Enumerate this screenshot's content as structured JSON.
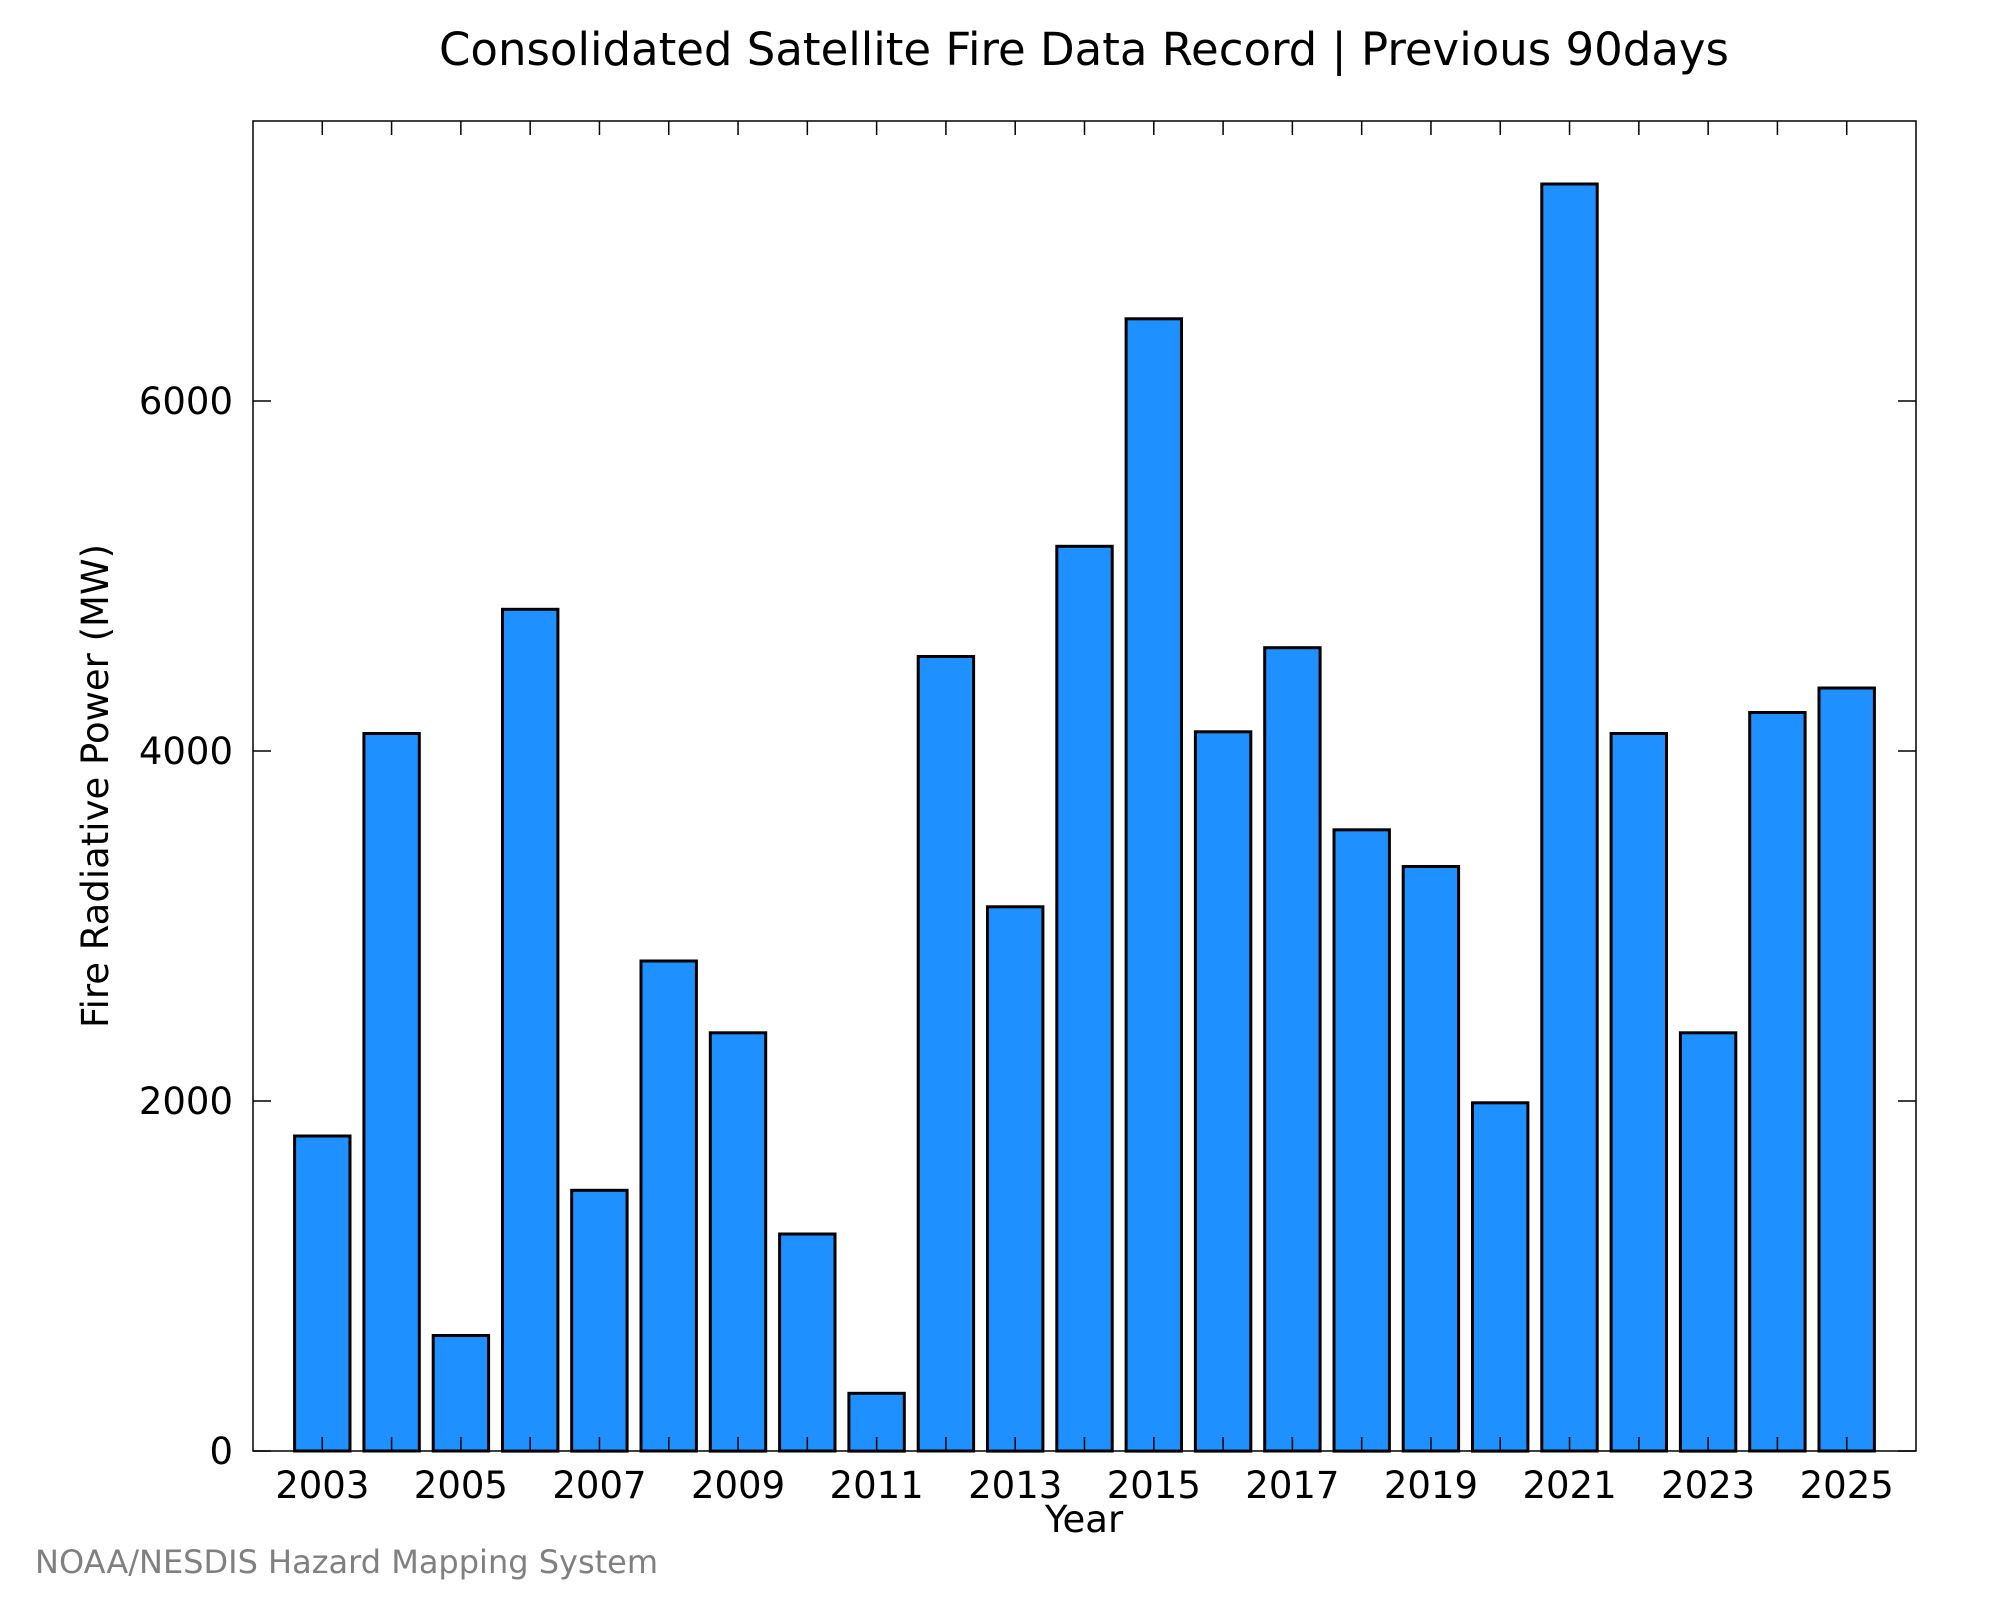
{
  "credit": "NOAA/NESDIS Hazard Mapping System",
  "chart_data": {
    "type": "bar",
    "title": "Consolidated Satellite Fire Data Record | Previous 90days",
    "xlabel": "Year",
    "ylabel": "Fire Radiative Power (MW)",
    "categories": [
      "2003",
      "2004",
      "2005",
      "2006",
      "2007",
      "2008",
      "2009",
      "2010",
      "2011",
      "2012",
      "2013",
      "2014",
      "2015",
      "2016",
      "2017",
      "2018",
      "2019",
      "2020",
      "2021",
      "2022",
      "2023",
      "2024",
      "2025"
    ],
    "values": [
      1800,
      4100,
      660,
      4810,
      1490,
      2800,
      2390,
      1240,
      330,
      4540,
      3110,
      5170,
      6470,
      4110,
      4590,
      3550,
      3340,
      1990,
      7240,
      4100,
      2390,
      4220,
      4360
    ],
    "ylim": [
      0,
      7600
    ],
    "yticks": [
      0,
      2000,
      4000,
      6000
    ],
    "xtick_labels": [
      "2003",
      "2005",
      "2007",
      "2009",
      "2011",
      "2013",
      "2015",
      "2017",
      "2019",
      "2021",
      "2023",
      "2025"
    ],
    "bar_color": "#1e90ff",
    "bar_edge_color": "#000000",
    "grid": false
  }
}
